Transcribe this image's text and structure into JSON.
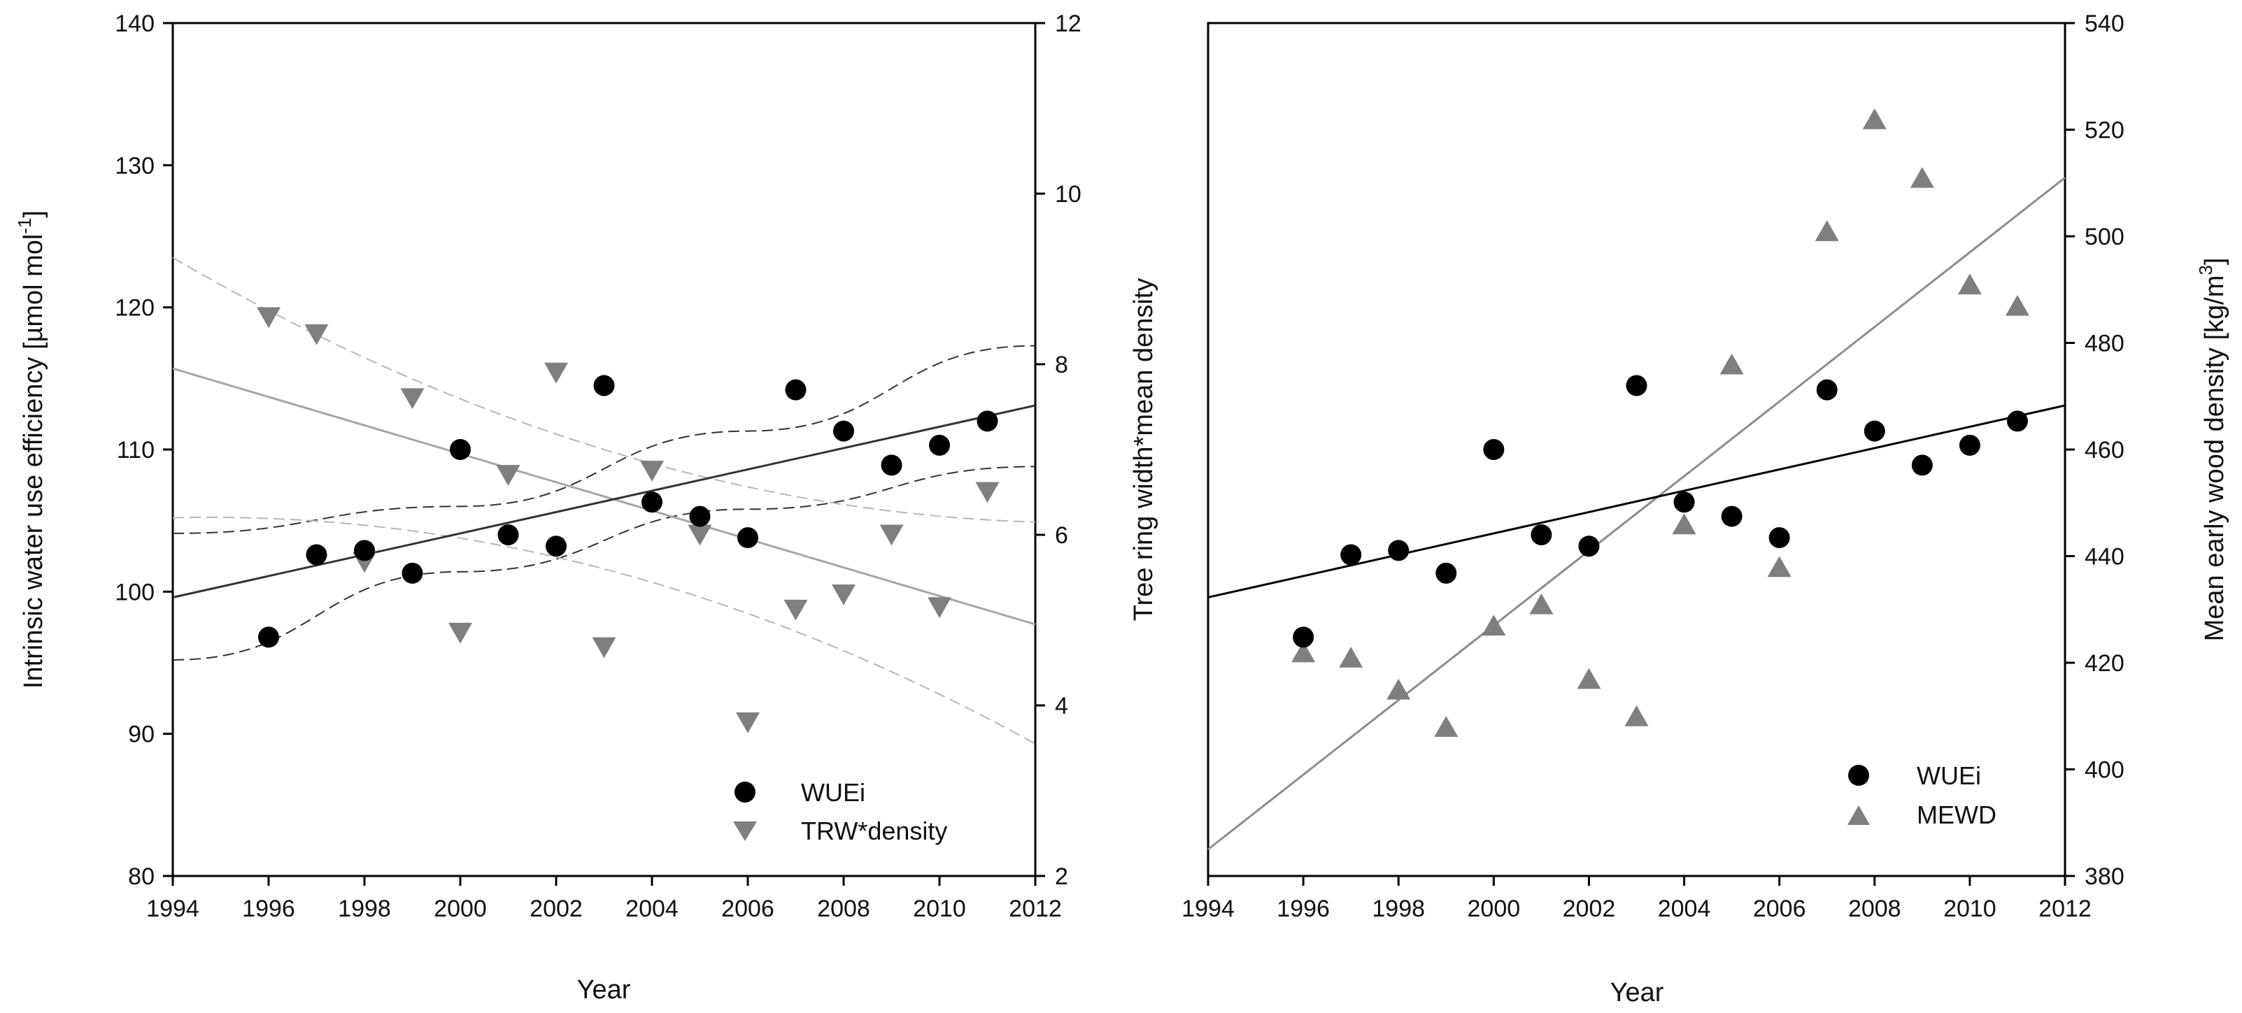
{
  "colors": {
    "wue": "#000000",
    "trw": "#7f7f7f",
    "fitTrw": "#a6a6a6",
    "ciTrw": "#b8b8b8",
    "ciWue": "#333333"
  },
  "chart_data": [
    {
      "type": "scatter",
      "title": "",
      "xlabel": "Year",
      "ylabel_left": "Intrinsic water use efficiency [µmol mol",
      "ylabel_left_sup": "-1",
      "ylabel_left_end": "]",
      "ylabel_right": "",
      "xlim": [
        1994,
        2012
      ],
      "ylim_left": [
        80,
        140
      ],
      "ylim_right": [
        2,
        12
      ],
      "x_ticks": [
        "1994",
        "1996",
        "1998",
        "2000",
        "2002",
        "2004",
        "2006",
        "2008",
        "2010",
        "2012"
      ],
      "y_left_ticks": [
        "80",
        "90",
        "100",
        "110",
        "120",
        "130",
        "140"
      ],
      "y_right_ticks": [
        "2",
        "4",
        "6",
        "8",
        "10",
        "12"
      ],
      "legend": [
        {
          "label": "WUEi",
          "marker": "circle"
        },
        {
          "label": "TRW*density",
          "marker": "triangle-down"
        }
      ],
      "legend_position": "bottom-right",
      "series": [
        {
          "name": "WUEi",
          "axis": "left",
          "x": [
            1996,
            1997,
            1998,
            1999,
            2000,
            2001,
            2002,
            2003,
            2004,
            2005,
            2006,
            2007,
            2008,
            2009,
            2010,
            2011
          ],
          "y": [
            96.8,
            102.6,
            102.9,
            101.3,
            110.0,
            104.0,
            103.2,
            114.5,
            106.3,
            105.3,
            103.8,
            114.2,
            111.3,
            108.9,
            110.3,
            112.0
          ],
          "fit": [
            99.6,
            113.1
          ],
          "ci_upper": [
            104.1,
            106.0,
            111.3,
            117.3
          ],
          "ci_lower": [
            95.2,
            101.4,
            105.8,
            108.8
          ]
        },
        {
          "name": "TRW*density",
          "axis": "right",
          "x": [
            1996,
            1997,
            1998,
            1999,
            2000,
            2001,
            2002,
            2003,
            2004,
            2005,
            2006,
            2007,
            2008,
            2009,
            2010,
            2011
          ],
          "y": [
            8.55,
            8.35,
            5.68,
            7.6,
            4.85,
            6.7,
            7.9,
            4.68,
            6.75,
            6.0,
            3.8,
            5.12,
            5.3,
            6.0,
            5.15,
            6.5
          ],
          "fit": [
            7.95,
            4.95
          ],
          "ci_upper": [
            9.25,
            7.0,
            6.15
          ],
          "ci_lower": [
            6.2,
            5.6,
            3.55
          ]
        }
      ]
    },
    {
      "type": "scatter",
      "title": "",
      "xlabel": "Year",
      "ylabel_left": "Tree ring width*mean density",
      "ylabel_right": "Mean early wood density [kg/m",
      "ylabel_right_sup": "3",
      "ylabel_right_end": "]",
      "xlim": [
        1994,
        2012
      ],
      "ylim_left": [
        80,
        140
      ],
      "ylim_right": [
        380,
        540
      ],
      "x_ticks": [
        "1994",
        "1996",
        "1998",
        "2000",
        "2002",
        "2004",
        "2006",
        "2008",
        "2010",
        "2012"
      ],
      "y_right_ticks": [
        "380",
        "400",
        "420",
        "440",
        "460",
        "480",
        "500",
        "520",
        "540"
      ],
      "legend": [
        {
          "label": "WUEi",
          "marker": "circle"
        },
        {
          "label": "MEWD",
          "marker": "triangle-up"
        }
      ],
      "legend_position": "bottom-right",
      "series": [
        {
          "name": "WUEi",
          "axis": "left",
          "x": [
            1996,
            1997,
            1998,
            1999,
            2000,
            2001,
            2002,
            2003,
            2004,
            2005,
            2006,
            2007,
            2008,
            2009,
            2010,
            2011
          ],
          "y": [
            96.8,
            102.6,
            102.9,
            101.3,
            110.0,
            104.0,
            103.2,
            114.5,
            106.3,
            105.3,
            103.8,
            114.2,
            111.3,
            108.9,
            110.3,
            112.0
          ],
          "fit": [
            99.6,
            113.1
          ]
        },
        {
          "name": "MEWD",
          "axis": "right",
          "x": [
            1996,
            1997,
            1998,
            1999,
            2000,
            2001,
            2002,
            2003,
            2004,
            2005,
            2006,
            2007,
            2008,
            2009,
            2010,
            2011
          ],
          "y": [
            422,
            421,
            415,
            408,
            427,
            431,
            417,
            410,
            446,
            476,
            438,
            501,
            522,
            511,
            491,
            487
          ],
          "fit": [
            385,
            511
          ]
        }
      ]
    }
  ]
}
